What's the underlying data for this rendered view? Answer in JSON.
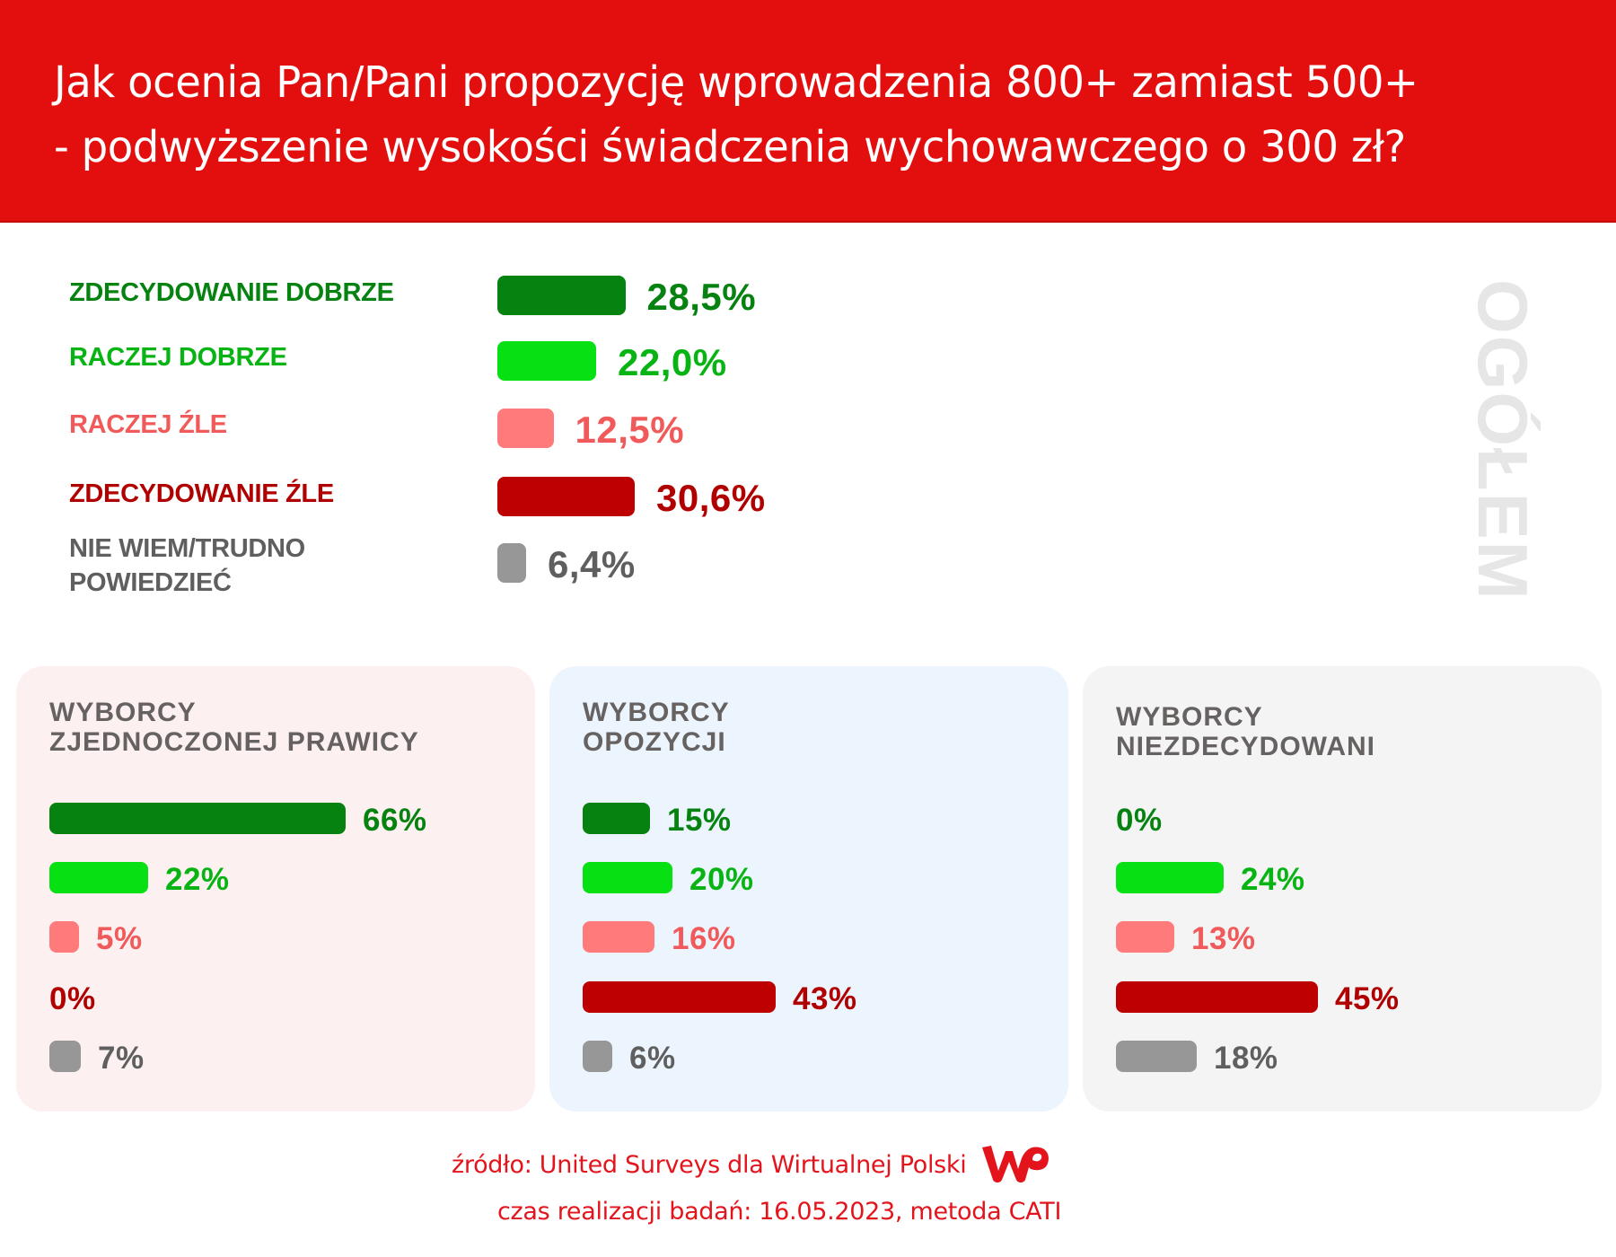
{
  "header": {
    "title_line1": "Jak ocenia Pan/Pani propozycję wprowadzenia 800+ zamiast 500+",
    "title_line2": "- podwyższenie wysokości świadczenia wychowawczego o 300 zł?"
  },
  "colors": {
    "header_bg": "#e30f0f",
    "zdecydowanie_dobrze": "#068210",
    "raczej_dobrze": "#07e013",
    "raczej_zle": "#ff7b7b",
    "zdecydowanie_zle": "#bd0000",
    "nie_wiem": "#979797",
    "label_zdecydowanie_dobrze": "#068210",
    "label_raczej_dobrze": "#07b413",
    "label_raczej_zle": "#f05a5a",
    "label_zdecydowanie_zle": "#b00000",
    "label_nie_wiem": "#5f5f5f",
    "panel_prawica_bg": "#fdf0f0",
    "panel_opozycja_bg": "#ecf4fd",
    "panel_niezdecydowani_bg": "#f4f4f4",
    "footer_text": "#e3141c",
    "ogolem_text": "#e6e6e6"
  },
  "overall": {
    "side_label": "OGÓŁEM",
    "items": [
      {
        "label": "ZDECYDOWANIE DOBRZE",
        "value": 28.5,
        "display": "28,5%"
      },
      {
        "label": "RACZEJ DOBRZE",
        "value": 22.0,
        "display": "22,0%"
      },
      {
        "label": "RACZEJ ŹLE",
        "value": 12.5,
        "display": "12,5%"
      },
      {
        "label": "ZDECYDOWANIE ŹLE",
        "value": 30.6,
        "display": "30,6%"
      },
      {
        "label_line1": "NIE WIEM/TRUDNO",
        "label_line2": "POWIEDZIEĆ",
        "label": "NIE WIEM/TRUDNO POWIEDZIEĆ",
        "value": 6.4,
        "display": "6,4%"
      }
    ]
  },
  "panels": [
    {
      "title_line1": "WYBORCY",
      "title_line2": "ZJEDNOCZONEJ PRAWICY",
      "values": [
        66,
        22,
        5,
        0,
        7
      ],
      "displays": [
        "66%",
        "22%",
        "5%",
        "0%",
        "7%"
      ]
    },
    {
      "title_line1": "WYBORCY",
      "title_line2": "OPOZYCJI",
      "values": [
        15,
        20,
        16,
        43,
        6
      ],
      "displays": [
        "15%",
        "20%",
        "16%",
        "43%",
        "6%"
      ]
    },
    {
      "title_line1": "WYBORCY",
      "title_line2": "NIEZDECYDOWANI",
      "values": [
        0,
        24,
        13,
        45,
        18
      ],
      "displays": [
        "0%",
        "24%",
        "13%",
        "45%",
        "18%"
      ]
    }
  ],
  "footer": {
    "source": "źródło: United Surveys dla Wirtualnej Polski",
    "method": "czas realizacji badań: 16.05.2023, metoda CATI",
    "logo": "WP"
  },
  "chart_data": [
    {
      "type": "bar",
      "orientation": "horizontal",
      "title": "Jak ocenia Pan/Pani propozycję wprowadzenia 800+ zamiast 500+ - podwyższenie wysokości świadczenia wychowawczego o 300 zł?",
      "group": "OGÓŁEM",
      "categories": [
        "ZDECYDOWANIE DOBRZE",
        "RACZEJ DOBRZE",
        "RACZEJ ŹLE",
        "ZDECYDOWANIE ŹLE",
        "NIE WIEM/TRUDNO POWIEDZIEĆ"
      ],
      "values": [
        28.5,
        22.0,
        12.5,
        30.6,
        6.4
      ],
      "unit": "%"
    },
    {
      "type": "bar",
      "orientation": "horizontal",
      "group": "WYBORCY ZJEDNOCZONEJ PRAWICY",
      "categories": [
        "ZDECYDOWANIE DOBRZE",
        "RACZEJ DOBRZE",
        "RACZEJ ŹLE",
        "ZDECYDOWANIE ŹLE",
        "NIE WIEM/TRUDNO POWIEDZIEĆ"
      ],
      "values": [
        66,
        22,
        5,
        0,
        7
      ],
      "unit": "%"
    },
    {
      "type": "bar",
      "orientation": "horizontal",
      "group": "WYBORCY OPOZYCJI",
      "categories": [
        "ZDECYDOWANIE DOBRZE",
        "RACZEJ DOBRZE",
        "RACZEJ ŹLE",
        "ZDECYDOWANIE ŹLE",
        "NIE WIEM/TRUDNO POWIEDZIEĆ"
      ],
      "values": [
        15,
        20,
        16,
        43,
        6
      ],
      "unit": "%"
    },
    {
      "type": "bar",
      "orientation": "horizontal",
      "group": "WYBORCY NIEZDECYDOWANI",
      "categories": [
        "ZDECYDOWANIE DOBRZE",
        "RACZEJ DOBRZE",
        "RACZEJ ŹLE",
        "ZDECYDOWANIE ŹLE",
        "NIE WIEM/TRUDNO POWIEDZIEĆ"
      ],
      "values": [
        0,
        24,
        13,
        45,
        18
      ],
      "unit": "%"
    }
  ]
}
